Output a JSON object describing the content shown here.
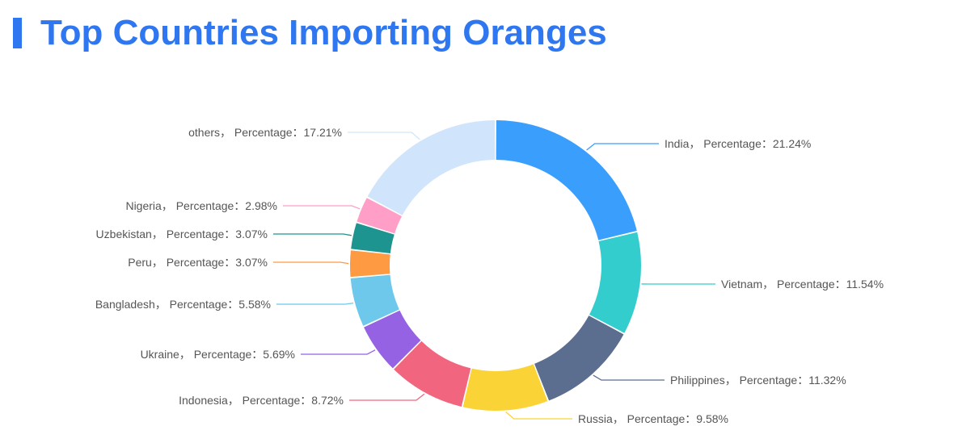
{
  "colors": {
    "accent": "#2f77f1",
    "label_text": "#555555"
  },
  "chart_data": {
    "type": "pie",
    "variant": "donut",
    "title": "Top Countries Importing Oranges",
    "legend": "none",
    "slices": [
      {
        "name": "India",
        "value": 21.24,
        "label": "India， Percentage：21.24%",
        "color": "#3a9efd"
      },
      {
        "name": "Vietnam",
        "value": 11.54,
        "label": "Vietnam， Percentage：11.54%",
        "color": "#34cdcd"
      },
      {
        "name": "Philippines",
        "value": 11.32,
        "label": "Philippines， Percentage：11.32%",
        "color": "#5b6e8f"
      },
      {
        "name": "Russia",
        "value": 9.58,
        "label": "Russia， Percentage：9.58%",
        "color": "#fad337"
      },
      {
        "name": "Indonesia",
        "value": 8.72,
        "label": "Indonesia， Percentage：8.72%",
        "color": "#f1667e"
      },
      {
        "name": "Ukraine",
        "value": 5.69,
        "label": "Ukraine， Percentage：5.69%",
        "color": "#9562e4"
      },
      {
        "name": "Bangladesh",
        "value": 5.58,
        "label": "Bangladesh， Percentage：5.58%",
        "color": "#6ec8ec"
      },
      {
        "name": "Peru",
        "value": 3.07,
        "label": "Peru， Percentage：3.07%",
        "color": "#fe9a42"
      },
      {
        "name": "Uzbekistan",
        "value": 3.07,
        "label": "Uzbekistan， Percentage：3.07%",
        "color": "#1e9490"
      },
      {
        "name": "Nigeria",
        "value": 2.98,
        "label": "Nigeria， Percentage：2.98%",
        "color": "#ff9ec6"
      },
      {
        "name": "others",
        "value": 17.21,
        "label": "others， Percentage：17.21%",
        "color": "#d0e5fc"
      }
    ]
  }
}
